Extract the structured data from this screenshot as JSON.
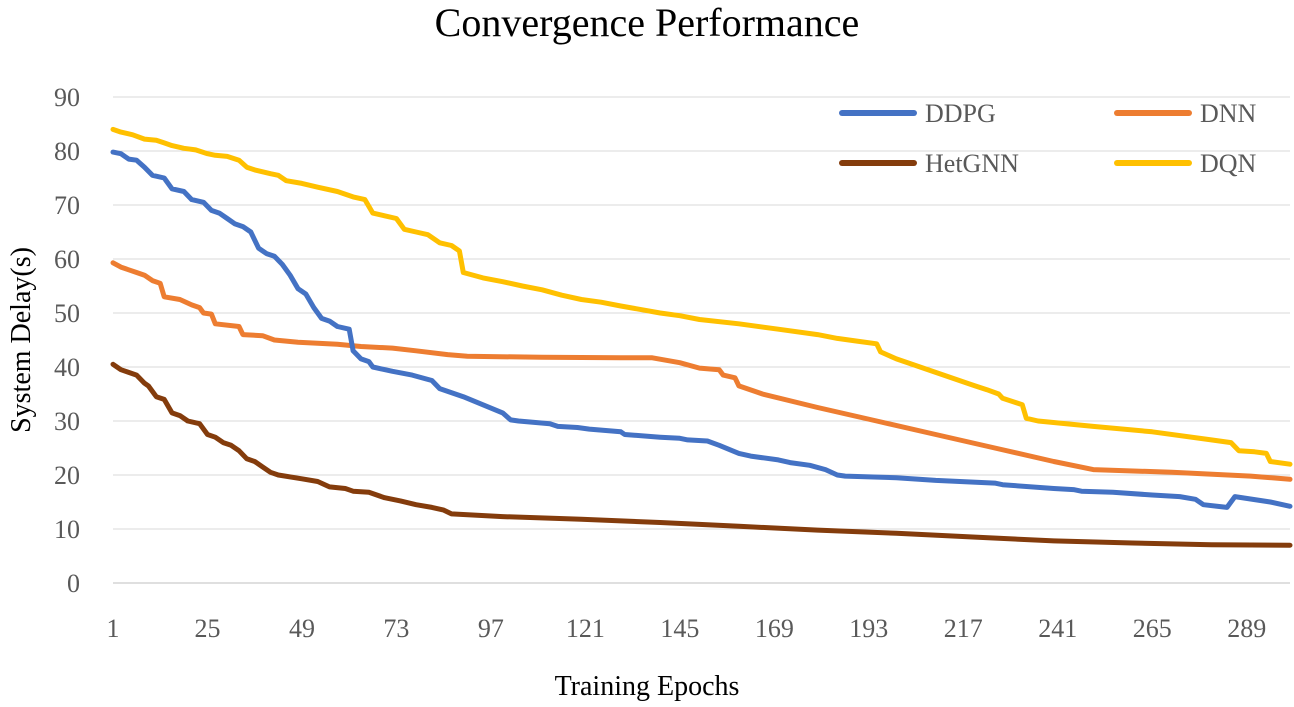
{
  "chart_data": {
    "type": "line",
    "title": "Convergence Performance",
    "xlabel": "Training Epochs",
    "ylabel": "System Delay(s)",
    "ylim": [
      0,
      90
    ],
    "yticks": [
      0,
      10,
      20,
      30,
      40,
      50,
      60,
      70,
      80,
      90
    ],
    "xlim": [
      1,
      300
    ],
    "xticks": [
      1,
      25,
      49,
      73,
      97,
      121,
      145,
      169,
      193,
      217,
      241,
      265,
      289
    ],
    "grid": true,
    "legend_position": "top-right",
    "series": [
      {
        "name": "DDPG",
        "color": "#4472c4",
        "points": [
          [
            1,
            79.8
          ],
          [
            3,
            79.5
          ],
          [
            5,
            78.5
          ],
          [
            7,
            78.3
          ],
          [
            9,
            77
          ],
          [
            11,
            75.5
          ],
          [
            14,
            75
          ],
          [
            16,
            73
          ],
          [
            19,
            72.5
          ],
          [
            21,
            71
          ],
          [
            24,
            70.5
          ],
          [
            26,
            69
          ],
          [
            28,
            68.5
          ],
          [
            30,
            67.5
          ],
          [
            32,
            66.5
          ],
          [
            34,
            66
          ],
          [
            36,
            65
          ],
          [
            38,
            62
          ],
          [
            40,
            61
          ],
          [
            42,
            60.5
          ],
          [
            44,
            59
          ],
          [
            46,
            57
          ],
          [
            48,
            54.5
          ],
          [
            50,
            53.5
          ],
          [
            52,
            51
          ],
          [
            54,
            49
          ],
          [
            56,
            48.5
          ],
          [
            58,
            47.5
          ],
          [
            61,
            47
          ],
          [
            62,
            43
          ],
          [
            64,
            41.5
          ],
          [
            66,
            41
          ],
          [
            67,
            40
          ],
          [
            72,
            39.2
          ],
          [
            77,
            38.5
          ],
          [
            82,
            37.5
          ],
          [
            84,
            36
          ],
          [
            90,
            34.5
          ],
          [
            95,
            33
          ],
          [
            100,
            31.5
          ],
          [
            102,
            30.2
          ],
          [
            104,
            30
          ],
          [
            112,
            29.5
          ],
          [
            114,
            29
          ],
          [
            119,
            28.8
          ],
          [
            122,
            28.5
          ],
          [
            130,
            28
          ],
          [
            131,
            27.5
          ],
          [
            140,
            27
          ],
          [
            145,
            26.8
          ],
          [
            147,
            26.5
          ],
          [
            152,
            26.3
          ],
          [
            155,
            25.5
          ],
          [
            160,
            24
          ],
          [
            163,
            23.5
          ],
          [
            170,
            22.8
          ],
          [
            173,
            22.3
          ],
          [
            178,
            21.8
          ],
          [
            182,
            21
          ],
          [
            185,
            20
          ],
          [
            187,
            19.8
          ],
          [
            200,
            19.5
          ],
          [
            210,
            19
          ],
          [
            225,
            18.5
          ],
          [
            227,
            18.2
          ],
          [
            240,
            17.5
          ],
          [
            245,
            17.3
          ],
          [
            247,
            17
          ],
          [
            255,
            16.8
          ],
          [
            265,
            16.3
          ],
          [
            272,
            16
          ],
          [
            276,
            15.5
          ],
          [
            278,
            14.5
          ],
          [
            284,
            14
          ],
          [
            286,
            16
          ],
          [
            295,
            15
          ],
          [
            300,
            14.2
          ]
        ]
      },
      {
        "name": "DNN",
        "color": "#ed7d31",
        "points": [
          [
            1,
            59.3
          ],
          [
            3,
            58.5
          ],
          [
            5,
            58
          ],
          [
            7,
            57.5
          ],
          [
            9,
            57
          ],
          [
            11,
            56
          ],
          [
            13,
            55.5
          ],
          [
            14,
            53
          ],
          [
            18,
            52.5
          ],
          [
            21,
            51.5
          ],
          [
            23,
            51
          ],
          [
            24,
            50
          ],
          [
            26,
            49.8
          ],
          [
            27,
            48
          ],
          [
            33,
            47.5
          ],
          [
            34,
            46
          ],
          [
            39,
            45.8
          ],
          [
            42,
            45
          ],
          [
            48,
            44.6
          ],
          [
            58,
            44.2
          ],
          [
            64,
            43.8
          ],
          [
            72,
            43.5
          ],
          [
            78,
            43
          ],
          [
            86,
            42.3
          ],
          [
            91,
            42
          ],
          [
            110,
            41.8
          ],
          [
            130,
            41.7
          ],
          [
            138,
            41.7
          ],
          [
            145,
            40.8
          ],
          [
            150,
            39.8
          ],
          [
            155,
            39.5
          ],
          [
            156,
            38.5
          ],
          [
            159,
            38
          ],
          [
            160,
            36.5
          ],
          [
            164,
            35.5
          ],
          [
            166,
            35
          ],
          [
            180,
            32.5
          ],
          [
            195,
            30
          ],
          [
            210,
            27.5
          ],
          [
            225,
            25
          ],
          [
            240,
            22.5
          ],
          [
            250,
            21
          ],
          [
            270,
            20.5
          ],
          [
            290,
            19.8
          ],
          [
            300,
            19.2
          ]
        ]
      },
      {
        "name": "HetGNN",
        "color": "#843c0c",
        "points": [
          [
            1,
            40.5
          ],
          [
            3,
            39.5
          ],
          [
            5,
            39
          ],
          [
            7,
            38.5
          ],
          [
            9,
            37
          ],
          [
            10,
            36.5
          ],
          [
            12,
            34.5
          ],
          [
            14,
            34
          ],
          [
            16,
            31.5
          ],
          [
            18,
            31
          ],
          [
            20,
            30
          ],
          [
            23,
            29.5
          ],
          [
            25,
            27.5
          ],
          [
            27,
            27
          ],
          [
            29,
            26
          ],
          [
            31,
            25.5
          ],
          [
            33,
            24.5
          ],
          [
            35,
            23
          ],
          [
            37,
            22.5
          ],
          [
            39,
            21.5
          ],
          [
            41,
            20.5
          ],
          [
            43,
            20
          ],
          [
            49,
            19.3
          ],
          [
            53,
            18.8
          ],
          [
            56,
            17.8
          ],
          [
            60,
            17.5
          ],
          [
            62,
            17
          ],
          [
            66,
            16.8
          ],
          [
            70,
            15.8
          ],
          [
            74,
            15.2
          ],
          [
            78,
            14.5
          ],
          [
            82,
            14
          ],
          [
            85,
            13.5
          ],
          [
            87,
            12.8
          ],
          [
            100,
            12.3
          ],
          [
            120,
            11.8
          ],
          [
            140,
            11.2
          ],
          [
            160,
            10.5
          ],
          [
            180,
            9.8
          ],
          [
            200,
            9.2
          ],
          [
            220,
            8.5
          ],
          [
            240,
            7.8
          ],
          [
            260,
            7.4
          ],
          [
            280,
            7.1
          ],
          [
            300,
            7
          ]
        ]
      },
      {
        "name": "DQN",
        "color": "#ffc000",
        "points": [
          [
            1,
            84
          ],
          [
            3,
            83.5
          ],
          [
            6,
            83
          ],
          [
            9,
            82.2
          ],
          [
            12,
            82
          ],
          [
            14,
            81.5
          ],
          [
            16,
            81
          ],
          [
            19,
            80.5
          ],
          [
            22,
            80.2
          ],
          [
            25,
            79.5
          ],
          [
            27,
            79.2
          ],
          [
            30,
            79
          ],
          [
            33,
            78.3
          ],
          [
            35,
            77
          ],
          [
            37,
            76.5
          ],
          [
            41,
            75.8
          ],
          [
            43,
            75.5
          ],
          [
            45,
            74.5
          ],
          [
            49,
            74
          ],
          [
            53,
            73.3
          ],
          [
            58,
            72.5
          ],
          [
            62,
            71.5
          ],
          [
            65,
            71
          ],
          [
            67,
            68.5
          ],
          [
            70,
            68
          ],
          [
            73,
            67.5
          ],
          [
            75,
            65.5
          ],
          [
            78,
            65
          ],
          [
            81,
            64.5
          ],
          [
            84,
            63
          ],
          [
            87,
            62.5
          ],
          [
            89,
            61.5
          ],
          [
            90,
            57.5
          ],
          [
            95,
            56.5
          ],
          [
            100,
            55.8
          ],
          [
            105,
            55
          ],
          [
            110,
            54.3
          ],
          [
            115,
            53.3
          ],
          [
            120,
            52.5
          ],
          [
            125,
            52
          ],
          [
            130,
            51.3
          ],
          [
            140,
            50
          ],
          [
            145,
            49.5
          ],
          [
            150,
            48.8
          ],
          [
            160,
            48
          ],
          [
            170,
            47
          ],
          [
            180,
            46
          ],
          [
            185,
            45.3
          ],
          [
            190,
            44.8
          ],
          [
            195,
            44.3
          ],
          [
            196,
            42.8
          ],
          [
            200,
            41.5
          ],
          [
            210,
            39
          ],
          [
            220,
            36.5
          ],
          [
            223,
            35.8
          ],
          [
            226,
            35
          ],
          [
            227,
            34.2
          ],
          [
            230,
            33.5
          ],
          [
            232,
            33
          ],
          [
            233,
            30.5
          ],
          [
            236,
            30
          ],
          [
            250,
            29
          ],
          [
            265,
            28
          ],
          [
            280,
            26.5
          ],
          [
            285,
            26
          ],
          [
            287,
            24.5
          ],
          [
            291,
            24.3
          ],
          [
            294,
            24
          ],
          [
            295,
            22.5
          ],
          [
            300,
            22
          ]
        ]
      }
    ]
  }
}
